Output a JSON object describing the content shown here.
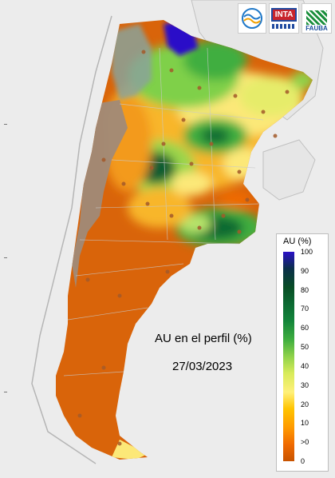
{
  "logos": {
    "logo_1": "wave-logo",
    "logo_2": "INTA",
    "logo_3": "FAUBA"
  },
  "map": {
    "title": "AU en el perfil (%)",
    "date": "27/03/2023"
  },
  "legend": {
    "title": "AU (%)",
    "ticks": [
      "100",
      "90",
      "80",
      "70",
      "60",
      "50",
      "40",
      "30",
      "20",
      "10",
      ">0",
      "0"
    ],
    "colors": {
      "low": "#c75300",
      "mid_low": "#ff9a00",
      "mid": "#fff07a",
      "mid_high": "#3fae3f",
      "high": "#084d25",
      "max": "#2a10c8"
    }
  }
}
